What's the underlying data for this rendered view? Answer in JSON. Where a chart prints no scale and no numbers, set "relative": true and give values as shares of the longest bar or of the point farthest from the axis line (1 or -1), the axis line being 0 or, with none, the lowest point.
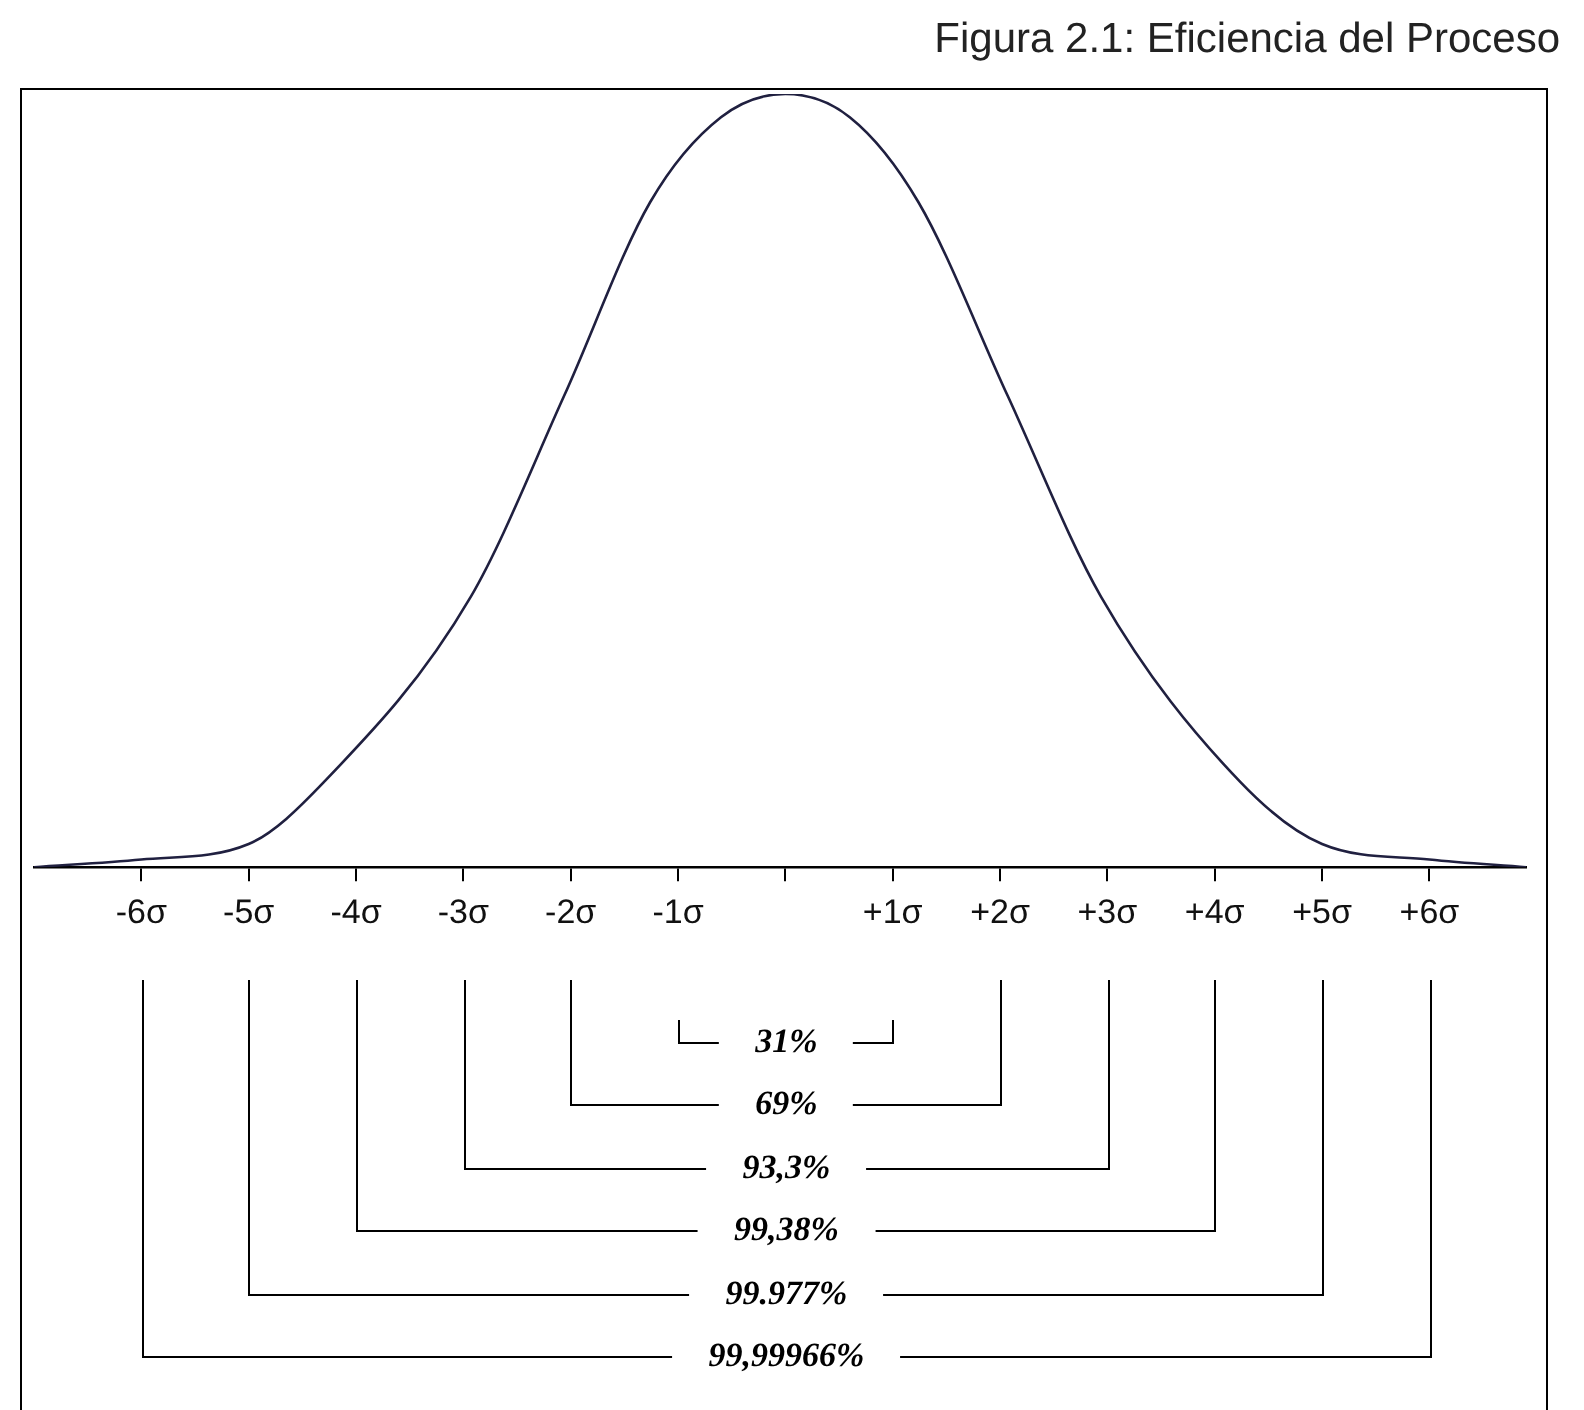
{
  "chart_data": {
    "type": "line",
    "title": "Figura 2.1: Eficiencia del Proceso",
    "relative": true,
    "x": [
      -7,
      -6,
      -5,
      -4.3,
      -2.93,
      -2.06,
      -1.26,
      -0.6,
      0,
      0.6,
      1.24,
      2.07,
      2.94,
      4.24,
      5,
      6,
      6.9
    ],
    "series": [
      {
        "color": "#202040",
        "values": [
          0,
          0.01,
          0.03,
          0.11,
          0.35,
          0.61,
          0.86,
          0.97,
          1,
          0.97,
          0.86,
          0.61,
          0.35,
          0.11,
          0.03,
          0.01,
          0
        ]
      }
    ],
    "xlim": [
      -7,
      6.9
    ],
    "xticks": [
      {
        "value": -6,
        "label": "-6σ"
      },
      {
        "value": -5,
        "label": "-5σ"
      },
      {
        "value": -4,
        "label": "-4σ"
      },
      {
        "value": -3,
        "label": "-3σ"
      },
      {
        "value": -2,
        "label": "-2σ"
      },
      {
        "value": -1,
        "label": "-1σ"
      },
      {
        "value": 0,
        "label": null
      },
      {
        "value": 1,
        "label": "+1σ"
      },
      {
        "value": 2,
        "label": "+2σ"
      },
      {
        "value": 3,
        "label": "+3σ"
      },
      {
        "value": 4,
        "label": "+4σ"
      },
      {
        "value": 5,
        "label": "+5σ"
      },
      {
        "value": 6,
        "label": "+6σ"
      }
    ],
    "annotations": [
      "31%",
      "69%",
      "93,3%",
      "99,38%",
      "99.977%",
      "99,99966%"
    ],
    "marker": "none",
    "line_style": "solid",
    "grid": false,
    "legend": false
  }
}
